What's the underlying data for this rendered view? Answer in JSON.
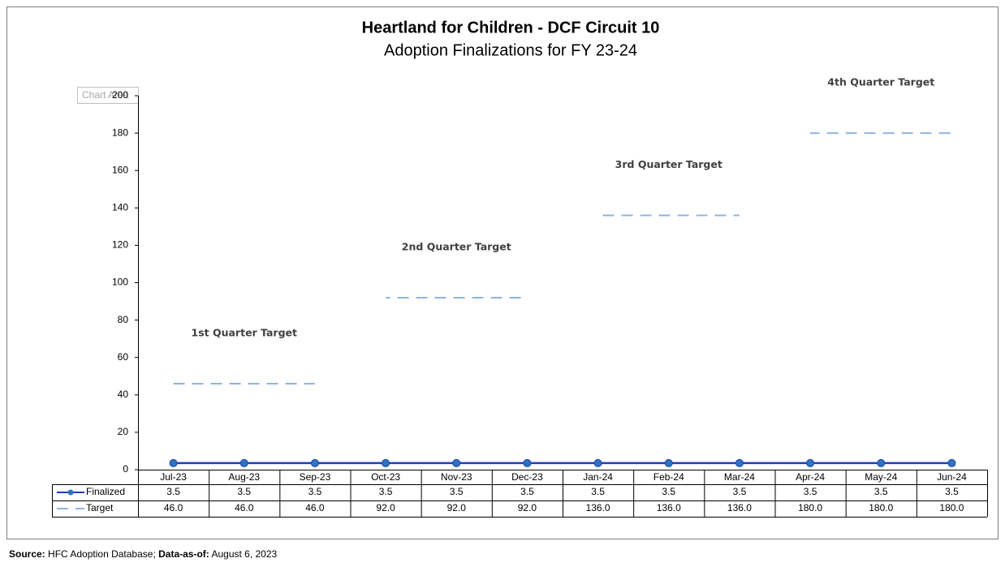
{
  "chart_data": {
    "type": "line",
    "title": "Heartland for Children - DCF Circuit 10",
    "subtitle": "Adoption Finalizations for FY 23-24",
    "tooltip": "Chart Area",
    "categories": [
      "Jul-23",
      "Aug-23",
      "Sep-23",
      "Oct-23",
      "Nov-23",
      "Dec-23",
      "Jan-24",
      "Feb-24",
      "Mar-24",
      "Apr-24",
      "May-24",
      "Jun-24"
    ],
    "series": [
      {
        "name": "Finalized",
        "color": "#1f3fbf",
        "marker_color": "#2e75b6",
        "style": "solid",
        "values": [
          3.5,
          3.5,
          3.5,
          3.5,
          3.5,
          3.5,
          3.5,
          3.5,
          3.5,
          3.5,
          3.5,
          3.5
        ],
        "value_labels": [
          "3.5",
          "3.5",
          "3.5",
          "3.5",
          "3.5",
          "3.5",
          "3.5",
          "3.5",
          "3.5",
          "3.5",
          "3.5",
          "3.5"
        ]
      },
      {
        "name": "Target",
        "color": "#8eb4e3",
        "style": "dashed",
        "values": [
          46,
          46,
          46,
          92,
          92,
          92,
          136,
          136,
          136,
          180,
          180,
          180
        ],
        "value_labels": [
          "46.0",
          "46.0",
          "46.0",
          "92.0",
          "92.0",
          "92.0",
          "136.0",
          "136.0",
          "136.0",
          "180.0",
          "180.0",
          "180.0"
        ]
      }
    ],
    "ylim": [
      0,
      200
    ],
    "yticks": [
      0,
      20,
      40,
      60,
      80,
      100,
      120,
      140,
      160,
      180,
      200
    ],
    "annotations": [
      "1st Quarter Target",
      "2nd Quarter Target",
      "3rd Quarter Target",
      "4th Quarter Target"
    ],
    "footnote": {
      "source_label": "Source:",
      "source": "HFC Adoption Database;",
      "date_label": "Data-as-of:",
      "date": "August 6, 2023"
    }
  }
}
